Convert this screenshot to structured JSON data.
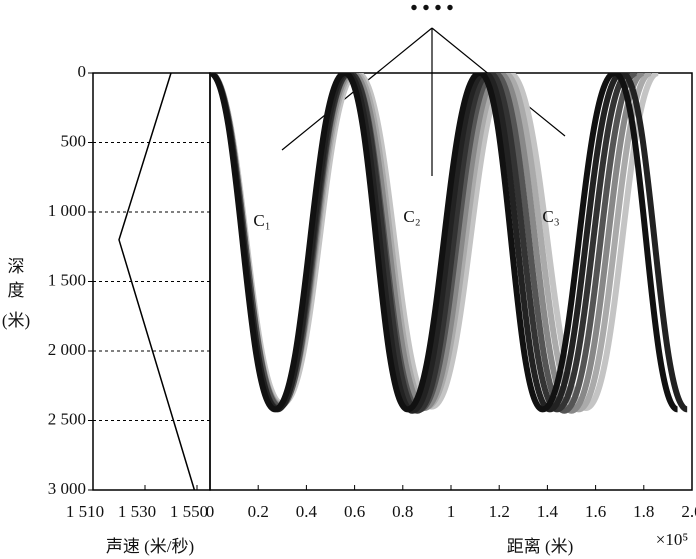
{
  "chart_data": [
    {
      "type": "line",
      "x_label": "声速 (米/秒)",
      "y_label": [
        "深",
        "度",
        "(米)"
      ],
      "x": [
        1540,
        1520,
        1549
      ],
      "values": [
        0,
        1200,
        3000
      ],
      "color": "#000000",
      "xlim": [
        1510,
        1555
      ],
      "xticks": [
        {
          "value": 1510,
          "label": "1 510"
        },
        {
          "value": 1530,
          "label": "1 530"
        },
        {
          "value": 1550,
          "label": "1 550"
        }
      ],
      "ylim": [
        0,
        3000
      ],
      "y_inverted": true,
      "yticks": [
        0,
        500,
        {
          "value": 1000,
          "label": "1 000"
        },
        {
          "value": 1500,
          "label": "1 500"
        },
        {
          "value": 2000,
          "label": "2 000"
        },
        {
          "value": 2500,
          "label": "2 500"
        },
        {
          "value": 3000,
          "label": "3 000"
        }
      ],
      "grid": "dashed"
    },
    {
      "type": "ray",
      "x_label": "距离 (米)",
      "x_multiplier": "×10⁵",
      "xlim": [
        0,
        2.0
      ],
      "xticks": [
        0,
        0.2,
        0.4,
        0.6,
        0.8,
        1,
        1.2,
        1.4,
        1.6,
        1.8,
        {
          "value": 2.0,
          "label": "2.0"
        }
      ],
      "ylim": [
        0,
        3000
      ],
      "y_inverted": true,
      "series": [
        {
          "name": "ray-1",
          "color": "#111111",
          "x": [
            0,
            0.27,
            0.56,
            0.82,
            1.12,
            1.38,
            1.68,
            1.94
          ],
          "values": [
            0,
            2420,
            0,
            2420,
            0,
            2420,
            0,
            2420
          ]
        },
        {
          "name": "ray-2",
          "color": "#222222",
          "x": [
            0,
            0.28,
            0.57,
            0.84,
            1.14,
            1.41,
            1.71,
            1.98
          ],
          "values": [
            0,
            2420,
            0,
            2430,
            0,
            2420,
            0,
            2420
          ]
        },
        {
          "name": "ray-3",
          "color": "#333333",
          "x": [
            0,
            0.28,
            0.58,
            0.86,
            1.16,
            1.44,
            1.74
          ],
          "values": [
            0,
            2410,
            0,
            2430,
            0,
            2420,
            0
          ]
        },
        {
          "name": "ray-4",
          "color": "#555555",
          "x": [
            0,
            0.29,
            0.58,
            0.87,
            1.18,
            1.47,
            1.77
          ],
          "values": [
            0,
            2400,
            0,
            2420,
            0,
            2430,
            0
          ]
        },
        {
          "name": "ray-5",
          "color": "#888888",
          "x": [
            0,
            0.29,
            0.59,
            0.89,
            1.2,
            1.5,
            1.8
          ],
          "values": [
            0,
            2390,
            0,
            2410,
            0,
            2430,
            0
          ]
        },
        {
          "name": "ray-6",
          "color": "#aaaaaa",
          "x": [
            0,
            0.29,
            0.6,
            0.9,
            1.22,
            1.53,
            1.83
          ],
          "values": [
            0,
            2380,
            0,
            2400,
            0,
            2420,
            0
          ]
        },
        {
          "name": "ray-7",
          "color": "#c4c4c4",
          "x": [
            0,
            0.3,
            0.61,
            0.92,
            1.24,
            1.56,
            1.86
          ],
          "values": [
            0,
            2380,
            0,
            2400,
            0,
            2410,
            0
          ]
        }
      ],
      "annotations": [
        "C₁",
        "C₂",
        "C₃",
        "• • • •"
      ]
    }
  ]
}
